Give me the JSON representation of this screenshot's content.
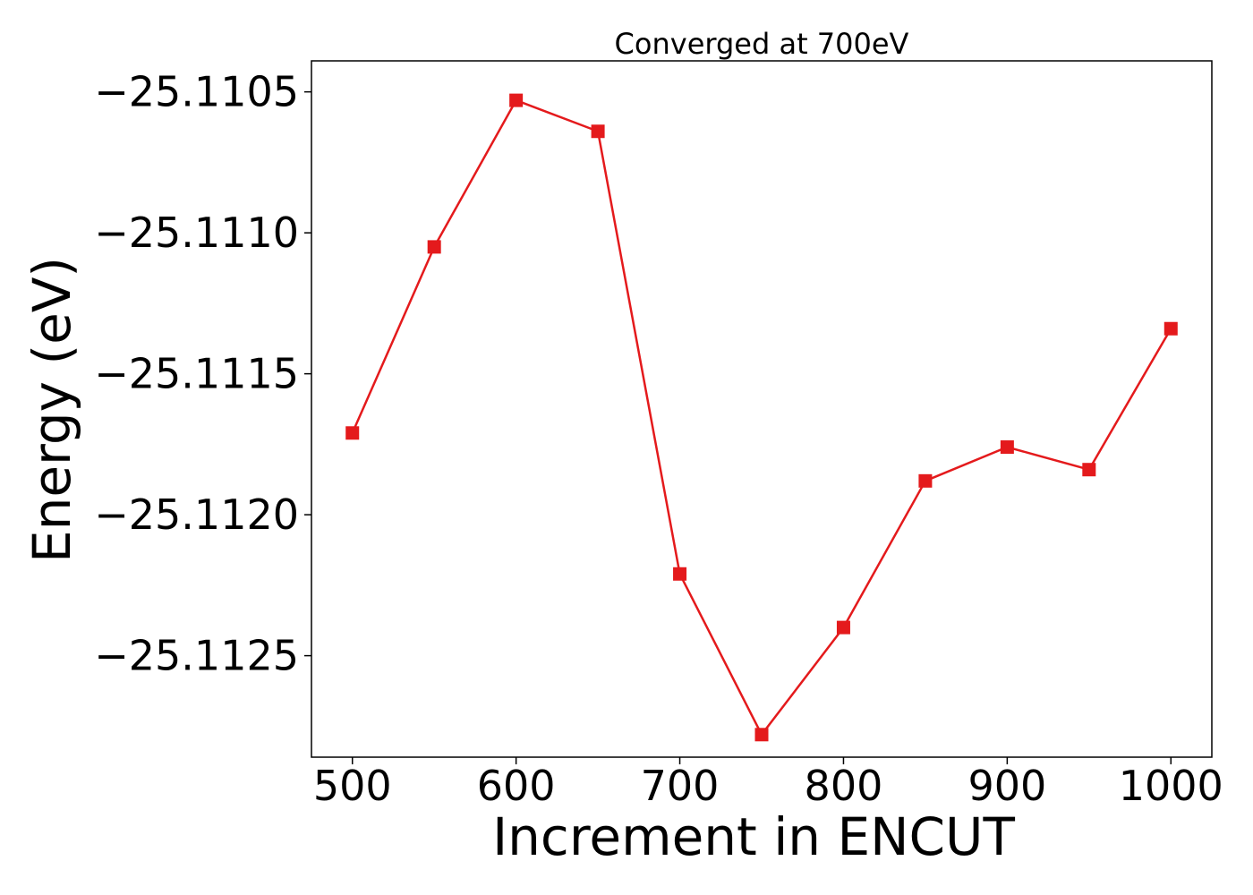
{
  "chart_data": {
    "type": "line",
    "title": "Converged at 700eV",
    "xlabel": "Increment in ENCUT",
    "ylabel": "Energy (eV)",
    "x": [
      500,
      550,
      600,
      650,
      700,
      750,
      800,
      850,
      900,
      950,
      1000
    ],
    "series": [
      {
        "values": [
          -25.11171,
          -25.11105,
          -25.11053,
          -25.11064,
          -25.11221,
          -25.11278,
          -25.1124,
          -25.11188,
          -25.11176,
          -25.11184,
          -25.11134
        ],
        "color": "#e41a1c",
        "marker": "square"
      }
    ],
    "xticks": [
      500,
      600,
      700,
      800,
      900,
      1000
    ],
    "xtick_labels": [
      "500",
      "600",
      "700",
      "800",
      "900",
      "1000"
    ],
    "yticks": [
      -25.1105,
      -25.111,
      -25.1115,
      -25.112,
      -25.1125
    ],
    "ytick_labels": [
      "−25.1105",
      "−25.1110",
      "−25.1115",
      "−25.1120",
      "−25.1125"
    ],
    "xlim": [
      475,
      1025
    ],
    "ylim": [
      -25.11286,
      -25.11039
    ],
    "grid": false,
    "legend": "none"
  }
}
